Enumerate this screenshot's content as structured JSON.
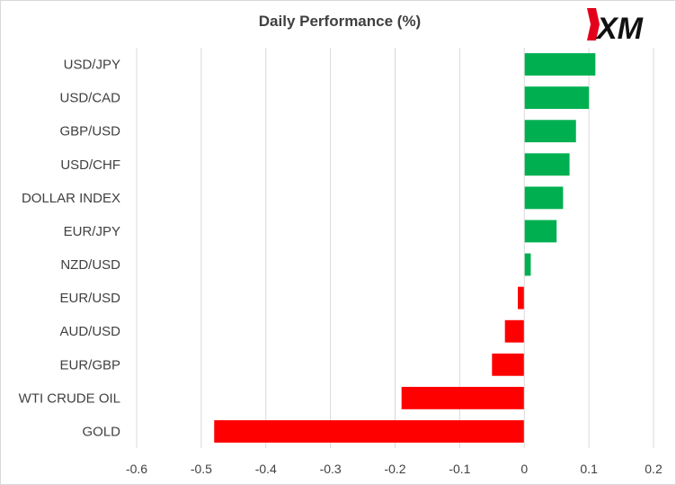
{
  "chart_data": {
    "type": "bar",
    "orientation": "horizontal",
    "title": "Daily Performance  (%)",
    "categories": [
      "USD/JPY",
      "USD/CAD",
      "GBP/USD",
      "USD/CHF",
      "DOLLAR INDEX",
      "EUR/JPY",
      "NZD/USD",
      "EUR/USD",
      "AUD/USD",
      "EUR/GBP",
      "WTI CRUDE OIL",
      "GOLD"
    ],
    "values": [
      0.11,
      0.1,
      0.08,
      0.07,
      0.06,
      0.05,
      0.01,
      -0.01,
      -0.03,
      -0.05,
      -0.19,
      -0.48
    ],
    "xlim": [
      -0.6,
      0.2
    ],
    "xticks": [
      "-0.6",
      "-0.5",
      "-0.4",
      "-0.3",
      "-0.2",
      "-0.1",
      "0",
      "0.1",
      "0.2"
    ],
    "grid": true,
    "legend": "none",
    "colors": {
      "positive": "#00b050",
      "negative": "#ff0000",
      "grid": "#d9d9d9",
      "text": "#404040"
    }
  },
  "logo": {
    "text": "XM",
    "accent": "#e3001b"
  }
}
